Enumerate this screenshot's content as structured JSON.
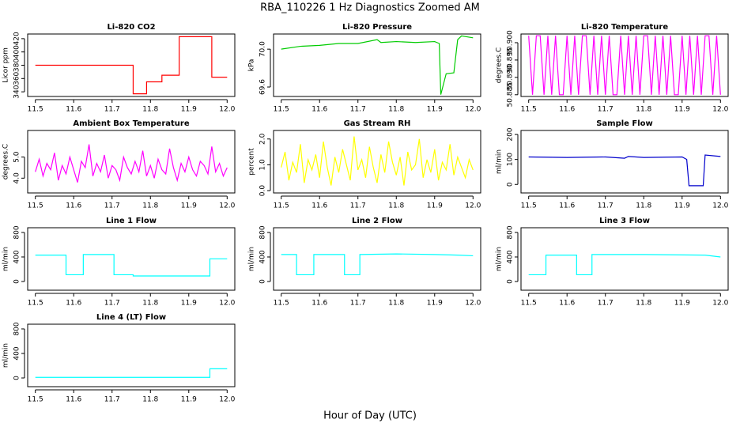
{
  "title": "RBA_110226  1 Hz Diagnostics Zoomed AM",
  "xlabel": "Hour of Day (UTC)",
  "chart_data": [
    {
      "type": "line",
      "title": "Li-820 CO2",
      "ylabel": "Licor ppm",
      "color": "#ff0000",
      "x": [
        11.5,
        11.755,
        11.755,
        11.79,
        11.79,
        11.83,
        11.83,
        11.875,
        11.875,
        11.96,
        11.96,
        12.0
      ],
      "values": [
        380,
        380,
        337,
        337,
        355,
        355,
        365,
        365,
        423,
        423,
        362,
        362
      ],
      "xlim": [
        11.48,
        12.02
      ],
      "xticks": [
        11.5,
        11.6,
        11.7,
        11.8,
        11.9,
        {
          "value": 12,
          "label": "12.0"
        }
      ],
      "ylim": [
        333,
        427
      ],
      "yticks": [
        340,
        360,
        380,
        400,
        420
      ]
    },
    {
      "type": "line",
      "title": "Li-820 Pressure",
      "ylabel": "kPa",
      "color": "#00cc00",
      "x": [
        11.5,
        11.55,
        11.6,
        11.65,
        11.7,
        11.75,
        11.76,
        11.8,
        11.85,
        11.9,
        11.912,
        11.916,
        11.93,
        11.95,
        11.96,
        11.97,
        12.0
      ],
      "values": [
        70.0,
        70.03,
        70.04,
        70.06,
        70.06,
        70.1,
        70.07,
        70.08,
        70.07,
        70.08,
        70.06,
        69.52,
        69.74,
        69.75,
        70.1,
        70.14,
        70.12
      ],
      "xlim": [
        11.48,
        12.02
      ],
      "xticks": [
        11.5,
        11.6,
        11.7,
        11.8,
        11.9,
        {
          "value": 12,
          "label": "12.0"
        }
      ],
      "ylim": [
        69.5,
        70.16
      ],
      "yticks": [
        69.6,
        {
          "value": 70,
          "label": "70.0"
        }
      ]
    },
    {
      "type": "line",
      "title": "Li-820 Temperature",
      "ylabel": "degrees.C",
      "color": "#ff00ff",
      "x": [
        11.5,
        11.51,
        11.52,
        11.53,
        11.54,
        11.55,
        11.56,
        11.57,
        11.58,
        11.59,
        11.6,
        11.61,
        11.62,
        11.63,
        11.64,
        11.65,
        11.66,
        11.67,
        11.68,
        11.69,
        11.7,
        11.71,
        11.72,
        11.73,
        11.74,
        11.75,
        11.76,
        11.77,
        11.78,
        11.79,
        11.8,
        11.81,
        11.82,
        11.83,
        11.84,
        11.85,
        11.86,
        11.87,
        11.88,
        11.89,
        11.9,
        11.91,
        11.92,
        11.93,
        11.94,
        11.95,
        11.96,
        11.97,
        11.98,
        11.99,
        12.0
      ],
      "values": [
        50.902,
        50.885,
        50.902,
        50.902,
        50.885,
        50.902,
        50.885,
        50.902,
        50.885,
        50.885,
        50.902,
        50.885,
        50.902,
        50.885,
        50.902,
        50.902,
        50.885,
        50.902,
        50.885,
        50.902,
        50.885,
        50.902,
        50.885,
        50.885,
        50.902,
        50.885,
        50.902,
        50.885,
        50.902,
        50.885,
        50.902,
        50.902,
        50.885,
        50.902,
        50.885,
        50.902,
        50.885,
        50.902,
        50.885,
        50.885,
        50.902,
        50.885,
        50.902,
        50.885,
        50.902,
        50.885,
        50.902,
        50.902,
        50.885,
        50.902,
        50.885
      ],
      "xlim": [
        11.48,
        12.02
      ],
      "xticks": [
        11.5,
        11.6,
        11.7,
        11.8,
        11.9,
        {
          "value": 12,
          "label": "12.0"
        }
      ],
      "ylim": [
        50.8845,
        50.9025
      ],
      "yticks": [
        50.885,
        {
          "value": 50.89,
          "label": "50.890"
        },
        50.895,
        {
          "value": 50.9,
          "label": "50.900"
        }
      ]
    },
    {
      "type": "line",
      "title": "Ambient Box Temperature",
      "ylabel": "degrees.C",
      "color": "#ff00ff",
      "x": [
        11.5,
        11.51,
        11.52,
        11.53,
        11.54,
        11.55,
        11.56,
        11.57,
        11.58,
        11.59,
        11.6,
        11.61,
        11.62,
        11.63,
        11.64,
        11.65,
        11.66,
        11.67,
        11.68,
        11.69,
        11.7,
        11.71,
        11.72,
        11.73,
        11.74,
        11.75,
        11.76,
        11.77,
        11.78,
        11.79,
        11.8,
        11.81,
        11.82,
        11.83,
        11.84,
        11.85,
        11.86,
        11.87,
        11.88,
        11.89,
        11.9,
        11.91,
        11.92,
        11.93,
        11.94,
        11.95,
        11.96,
        11.97,
        11.98,
        11.99,
        12.0
      ],
      "values": [
        4.3,
        4.9,
        4.1,
        4.7,
        4.4,
        5.2,
        3.9,
        4.6,
        4.2,
        5.0,
        4.4,
        3.8,
        4.8,
        4.5,
        5.6,
        4.1,
        4.7,
        4.3,
        5.1,
        4.0,
        4.6,
        4.4,
        3.9,
        5.0,
        4.5,
        4.2,
        4.8,
        4.3,
        5.3,
        4.1,
        4.6,
        4.0,
        4.9,
        4.4,
        4.2,
        5.4,
        4.5,
        3.9,
        4.7,
        4.3,
        5.0,
        4.4,
        4.1,
        4.8,
        4.6,
        4.2,
        5.5,
        4.3,
        4.7,
        4.1,
        4.5
      ],
      "xlim": [
        11.48,
        12.02
      ],
      "xticks": [
        11.5,
        11.6,
        11.7,
        11.8,
        11.9,
        {
          "value": 12,
          "label": "12.0"
        }
      ],
      "ylim": [
        3.3,
        6.26
      ],
      "yticks": [
        {
          "value": 4,
          "label": "4.0"
        },
        {
          "value": 5,
          "label": "5.0"
        }
      ]
    },
    {
      "type": "line",
      "title": "Gas Stream RH",
      "ylabel": "percent",
      "color": "#ffff00",
      "x": [
        11.5,
        11.51,
        11.52,
        11.53,
        11.54,
        11.55,
        11.56,
        11.57,
        11.58,
        11.59,
        11.6,
        11.61,
        11.62,
        11.63,
        11.64,
        11.65,
        11.66,
        11.67,
        11.68,
        11.69,
        11.7,
        11.71,
        11.72,
        11.73,
        11.74,
        11.75,
        11.76,
        11.77,
        11.78,
        11.79,
        11.8,
        11.81,
        11.82,
        11.83,
        11.84,
        11.85,
        11.86,
        11.87,
        11.88,
        11.89,
        11.9,
        11.91,
        11.92,
        11.93,
        11.94,
        11.95,
        11.96,
        11.97,
        11.98,
        11.99,
        12.0
      ],
      "values": [
        0.9,
        1.5,
        0.4,
        1.1,
        0.7,
        1.8,
        0.3,
        1.2,
        0.8,
        1.4,
        0.5,
        1.9,
        0.9,
        0.2,
        1.3,
        0.7,
        1.6,
        1.0,
        0.4,
        2.1,
        0.8,
        1.2,
        0.5,
        1.7,
        0.9,
        0.3,
        1.4,
        0.7,
        1.9,
        1.1,
        0.6,
        1.3,
        0.2,
        1.5,
        0.8,
        1.0,
        2.0,
        0.5,
        1.2,
        0.7,
        1.6,
        0.4,
        1.1,
        0.8,
        1.8,
        0.6,
        1.3,
        0.9,
        0.5,
        1.2,
        0.8
      ],
      "xlim": [
        11.48,
        12.02
      ],
      "xticks": [
        11.5,
        11.6,
        11.7,
        11.8,
        11.9,
        {
          "value": 12,
          "label": "12.0"
        }
      ],
      "ylim": [
        -0.09,
        2.33
      ],
      "yticks": [
        {
          "value": 0,
          "label": "0.0"
        },
        {
          "value": 1,
          "label": "1.0"
        },
        {
          "value": 2,
          "label": "2.0"
        }
      ]
    },
    {
      "type": "line",
      "title": "Sample Flow",
      "ylabel": "ml/min",
      "color": "#0000cc",
      "x": [
        11.5,
        11.6,
        11.7,
        11.75,
        11.76,
        11.8,
        11.9,
        11.912,
        11.918,
        11.955,
        11.96,
        12.0
      ],
      "values": [
        110,
        108,
        110,
        105,
        112,
        108,
        110,
        100,
        -5,
        -5,
        118,
        112
      ],
      "xlim": [
        11.48,
        12.02
      ],
      "xticks": [
        11.5,
        11.6,
        11.7,
        11.8,
        11.9,
        {
          "value": 12,
          "label": "12.0"
        }
      ],
      "ylim": [
        -34,
        216
      ],
      "yticks": [
        0,
        100,
        200
      ]
    },
    {
      "type": "line",
      "title": "Line 1 Flow",
      "ylabel": "ml/min",
      "color": "#00ffff",
      "x": [
        11.5,
        11.58,
        11.58,
        11.625,
        11.625,
        11.705,
        11.705,
        11.755,
        11.755,
        11.955,
        11.955,
        12.0
      ],
      "values": [
        430,
        430,
        110,
        110,
        440,
        440,
        110,
        110,
        90,
        90,
        370,
        370
      ],
      "xlim": [
        11.48,
        12.02
      ],
      "xticks": [
        11.5,
        11.6,
        11.7,
        11.8,
        11.9,
        {
          "value": 12,
          "label": "12.0"
        }
      ],
      "ylim": [
        -142,
        877
      ],
      "yticks": [
        0,
        400,
        800
      ]
    },
    {
      "type": "line",
      "title": "Line 2 Flow",
      "ylabel": "ml/min",
      "color": "#00ffff",
      "x": [
        11.5,
        11.54,
        11.54,
        11.585,
        11.585,
        11.665,
        11.665,
        11.705,
        11.705,
        11.8,
        11.9,
        11.96,
        12.0
      ],
      "values": [
        440,
        440,
        110,
        110,
        440,
        440,
        110,
        110,
        440,
        450,
        440,
        430,
        420
      ],
      "xlim": [
        11.48,
        12.02
      ],
      "xticks": [
        11.5,
        11.6,
        11.7,
        11.8,
        11.9,
        {
          "value": 12,
          "label": "12.0"
        }
      ],
      "ylim": [
        -142,
        877
      ],
      "yticks": [
        0,
        400,
        800
      ]
    },
    {
      "type": "line",
      "title": "Line 3 Flow",
      "ylabel": "ml/min",
      "color": "#00ffff",
      "x": [
        11.5,
        11.545,
        11.545,
        11.625,
        11.625,
        11.665,
        11.665,
        11.8,
        11.96,
        12.0
      ],
      "values": [
        110,
        110,
        430,
        430,
        110,
        110,
        440,
        440,
        430,
        400
      ],
      "xlim": [
        11.48,
        12.02
      ],
      "xticks": [
        11.5,
        11.6,
        11.7,
        11.8,
        11.9,
        {
          "value": 12,
          "label": "12.0"
        }
      ],
      "ylim": [
        -142,
        877
      ],
      "yticks": [
        0,
        400,
        800
      ]
    },
    {
      "type": "line",
      "title": "Line 4 (LT) Flow",
      "ylabel": "ml/min",
      "color": "#00ffff",
      "x": [
        11.5,
        11.955,
        11.955,
        12.0
      ],
      "values": [
        10,
        10,
        150,
        150
      ],
      "xlim": [
        11.48,
        12.02
      ],
      "xticks": [
        11.5,
        11.6,
        11.7,
        11.8,
        11.9,
        {
          "value": 12,
          "label": "12.0"
        }
      ],
      "ylim": [
        -142,
        877
      ],
      "yticks": [
        0,
        400,
        800
      ]
    }
  ]
}
